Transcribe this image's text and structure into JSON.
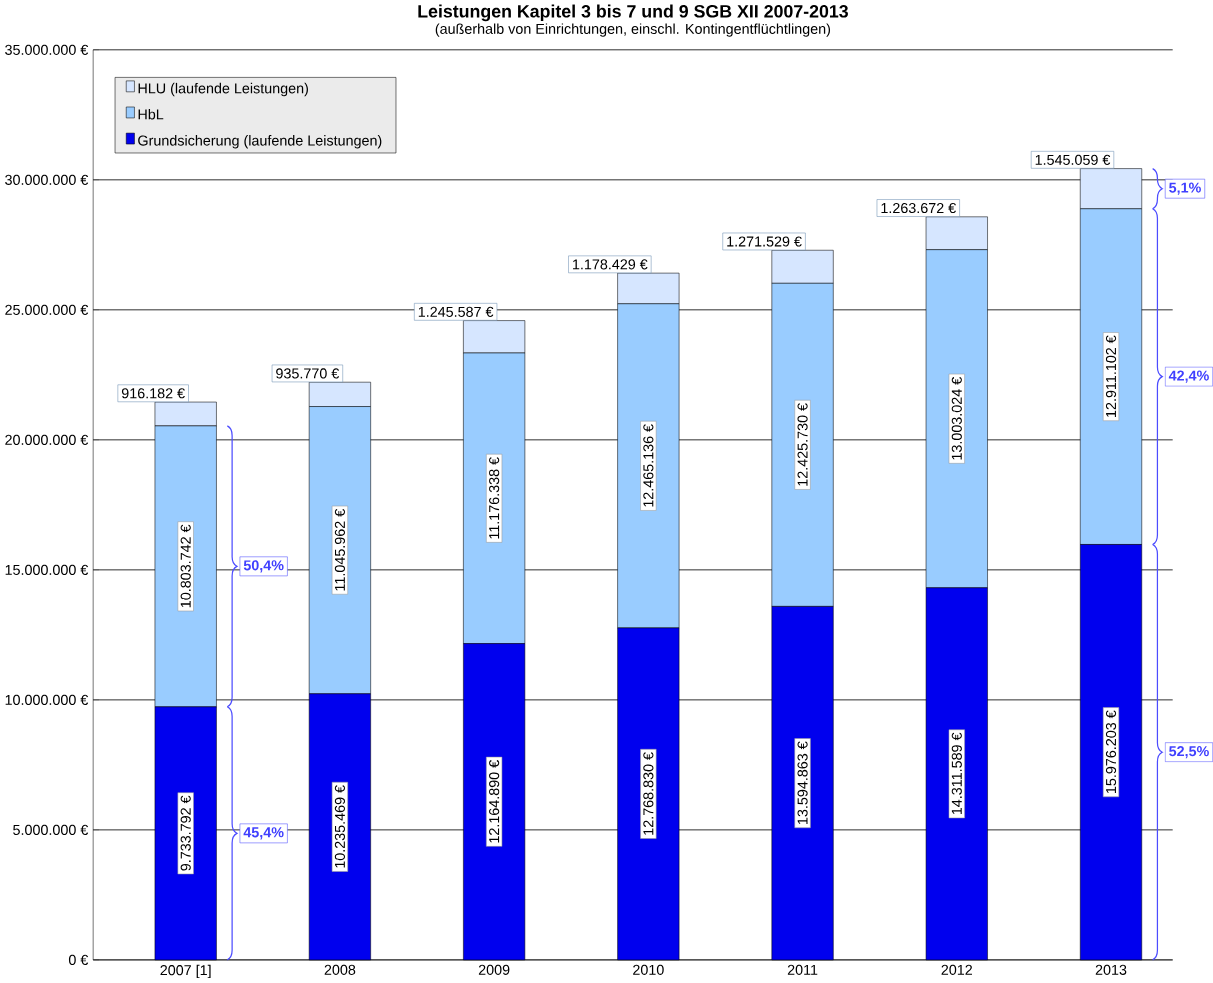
{
  "chart_data": {
    "type": "bar",
    "stacked": true,
    "title": "Leistungen Kapitel 3 bis 7 und 9 SGB XII 2007-2013",
    "subtitle": "(außerhalb von Einrichtungen, einschl. Kontingentflüchtlingen)",
    "categories": [
      "2007 [1]",
      "2008",
      "2009",
      "2010",
      "2011",
      "2012",
      "2013"
    ],
    "series": [
      {
        "name": "Grundsicherung (laufende Leistungen)",
        "color": "#0000ee",
        "values": [
          9733792,
          10235469,
          12164890,
          12768830,
          13594863,
          14311589,
          15976203
        ],
        "value_labels": [
          "9.733.792 €",
          "10.235.469 €",
          "12.164.890 €",
          "12.768.830 €",
          "13.594.863 €",
          "14.311.589 €",
          "15.976.203 €"
        ]
      },
      {
        "name": "HbL",
        "color": "#99ccff",
        "values": [
          10803742,
          11045962,
          11176338,
          12465136,
          12425730,
          13003024,
          12911102
        ],
        "value_labels": [
          "10.803.742 €",
          "11.045.962 €",
          "11.176.338 €",
          "12.465.136 €",
          "12.425.730 €",
          "13.003.024 €",
          "12.911.102 €"
        ]
      },
      {
        "name": "HLU (laufende Leistungen)",
        "color": "#d6e6ff",
        "values": [
          916182,
          935770,
          1245587,
          1178429,
          1271529,
          1263672,
          1545059
        ],
        "value_labels": [
          "916.182 €",
          "935.770 €",
          "1.245.587 €",
          "1.178.429 €",
          "1.271.529 €",
          "1.263.672 €",
          "1.545.059 €"
        ]
      }
    ],
    "ylim": [
      0,
      35000000
    ],
    "yticks": [
      {
        "value": 0,
        "label": "0 €"
      },
      {
        "value": 5000000,
        "label": "5.000.000 €"
      },
      {
        "value": 10000000,
        "label": "10.000.000 €"
      },
      {
        "value": 15000000,
        "label": "15.000.000 €"
      },
      {
        "value": 20000000,
        "label": "20.000.000 €"
      },
      {
        "value": 25000000,
        "label": "25.000.000 €"
      },
      {
        "value": 30000000,
        "label": "30.000.000 €"
      },
      {
        "value": 35000000,
        "label": "35.000.000 €"
      }
    ],
    "grid": "y",
    "legend": "top left",
    "annotations": [
      "50,4%",
      "45,4%",
      "5,1%",
      "42,4%",
      "52,5%"
    ]
  }
}
